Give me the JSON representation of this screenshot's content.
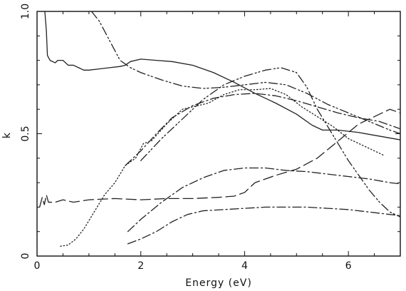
{
  "chart_data": {
    "type": "line",
    "title": "",
    "xlabel": "Energy (eV)",
    "ylabel": "k",
    "xlim": [
      0,
      7
    ],
    "ylim": [
      0,
      1
    ],
    "x_ticks": [
      0,
      2,
      4,
      6
    ],
    "x_tick_labels": [
      "0",
      "2",
      "4",
      "6"
    ],
    "y_ticks": [
      0,
      0.5,
      1
    ],
    "y_tick_labels": [
      "0",
      "0.5",
      "1.0"
    ],
    "grid": false,
    "legend": "none",
    "series": [
      {
        "style": "solid",
        "color": "#222222",
        "points": [
          [
            0.15,
            1.0
          ],
          [
            0.18,
            0.92
          ],
          [
            0.2,
            0.82
          ],
          [
            0.25,
            0.8
          ],
          [
            0.35,
            0.79
          ],
          [
            0.4,
            0.8
          ],
          [
            0.5,
            0.8
          ],
          [
            0.6,
            0.78
          ],
          [
            0.7,
            0.78
          ],
          [
            0.8,
            0.77
          ],
          [
            0.9,
            0.76
          ],
          [
            1.0,
            0.76
          ],
          [
            1.2,
            0.765
          ],
          [
            1.4,
            0.77
          ],
          [
            1.6,
            0.775
          ],
          [
            1.7,
            0.78
          ],
          [
            1.8,
            0.795
          ],
          [
            2.0,
            0.805
          ],
          [
            2.3,
            0.8
          ],
          [
            2.6,
            0.795
          ],
          [
            3.0,
            0.78
          ],
          [
            3.4,
            0.75
          ],
          [
            3.8,
            0.71
          ],
          [
            4.2,
            0.665
          ],
          [
            4.6,
            0.625
          ],
          [
            5.0,
            0.58
          ],
          [
            5.3,
            0.535
          ],
          [
            5.5,
            0.515
          ],
          [
            5.8,
            0.515
          ],
          [
            6.2,
            0.505
          ],
          [
            6.6,
            0.49
          ],
          [
            7.0,
            0.475
          ]
        ]
      },
      {
        "style": "dash-dot-dot",
        "color": "#222222",
        "points": [
          [
            1.05,
            1.0
          ],
          [
            1.2,
            0.96
          ],
          [
            1.4,
            0.88
          ],
          [
            1.6,
            0.8
          ],
          [
            1.8,
            0.77
          ],
          [
            2.0,
            0.75
          ],
          [
            2.4,
            0.72
          ],
          [
            2.8,
            0.695
          ],
          [
            3.2,
            0.685
          ],
          [
            3.6,
            0.69
          ],
          [
            4.0,
            0.7
          ],
          [
            4.4,
            0.71
          ],
          [
            4.8,
            0.7
          ],
          [
            5.2,
            0.665
          ],
          [
            5.6,
            0.62
          ],
          [
            6.0,
            0.585
          ],
          [
            6.4,
            0.55
          ],
          [
            6.8,
            0.515
          ],
          [
            7.0,
            0.5
          ]
        ]
      },
      {
        "style": "dotted",
        "color": "#222222",
        "points": [
          [
            0.45,
            0.04
          ],
          [
            0.6,
            0.045
          ],
          [
            0.75,
            0.07
          ],
          [
            0.9,
            0.11
          ],
          [
            1.1,
            0.18
          ],
          [
            1.3,
            0.25
          ],
          [
            1.5,
            0.3
          ],
          [
            1.7,
            0.37
          ],
          [
            1.9,
            0.4
          ],
          [
            2.05,
            0.46
          ],
          [
            2.2,
            0.47
          ],
          [
            2.5,
            0.54
          ],
          [
            2.8,
            0.6
          ],
          [
            3.0,
            0.61
          ],
          [
            3.3,
            0.625
          ],
          [
            3.6,
            0.66
          ],
          [
            3.9,
            0.68
          ],
          [
            4.2,
            0.68
          ],
          [
            4.5,
            0.685
          ],
          [
            4.8,
            0.66
          ],
          [
            5.1,
            0.61
          ],
          [
            5.4,
            0.57
          ],
          [
            5.7,
            0.53
          ],
          [
            6.0,
            0.48
          ],
          [
            6.3,
            0.45
          ],
          [
            6.6,
            0.42
          ],
          [
            6.7,
            0.41
          ]
        ]
      },
      {
        "style": "dash-dot",
        "color": "#222222",
        "points": [
          [
            1.7,
            0.37
          ],
          [
            2.0,
            0.43
          ],
          [
            2.3,
            0.5
          ],
          [
            2.6,
            0.565
          ],
          [
            3.0,
            0.615
          ],
          [
            3.4,
            0.645
          ],
          [
            3.8,
            0.66
          ],
          [
            4.2,
            0.665
          ],
          [
            4.6,
            0.655
          ],
          [
            5.0,
            0.635
          ],
          [
            5.4,
            0.61
          ],
          [
            5.8,
            0.585
          ],
          [
            6.2,
            0.565
          ],
          [
            6.6,
            0.55
          ],
          [
            7.0,
            0.52
          ]
        ]
      },
      {
        "style": "dash-dot-dot",
        "color": "#222222",
        "points": [
          [
            2.0,
            0.39
          ],
          [
            2.4,
            0.48
          ],
          [
            2.8,
            0.56
          ],
          [
            3.2,
            0.64
          ],
          [
            3.6,
            0.7
          ],
          [
            4.0,
            0.735
          ],
          [
            4.4,
            0.76
          ],
          [
            4.7,
            0.77
          ],
          [
            5.0,
            0.75
          ],
          [
            5.2,
            0.69
          ],
          [
            5.4,
            0.6
          ],
          [
            5.6,
            0.53
          ],
          [
            5.8,
            0.46
          ],
          [
            6.0,
            0.39
          ],
          [
            6.2,
            0.33
          ],
          [
            6.4,
            0.27
          ],
          [
            6.6,
            0.22
          ],
          [
            6.8,
            0.18
          ],
          [
            7.0,
            0.16
          ]
        ]
      },
      {
        "style": "long-dash",
        "color": "#222222",
        "points": [
          [
            0.05,
            0.2
          ],
          [
            0.1,
            0.24
          ],
          [
            0.14,
            0.21
          ],
          [
            0.18,
            0.25
          ],
          [
            0.22,
            0.22
          ],
          [
            0.35,
            0.22
          ],
          [
            0.5,
            0.23
          ],
          [
            0.7,
            0.22
          ],
          [
            1.0,
            0.23
          ],
          [
            1.5,
            0.235
          ],
          [
            2.0,
            0.23
          ],
          [
            2.5,
            0.235
          ],
          [
            3.0,
            0.235
          ],
          [
            3.5,
            0.24
          ],
          [
            3.8,
            0.245
          ],
          [
            4.0,
            0.26
          ],
          [
            4.2,
            0.3
          ],
          [
            4.6,
            0.33
          ],
          [
            5.0,
            0.355
          ],
          [
            5.4,
            0.4
          ],
          [
            5.8,
            0.47
          ],
          [
            6.2,
            0.54
          ],
          [
            6.6,
            0.58
          ],
          [
            6.8,
            0.6
          ],
          [
            7.0,
            0.585
          ]
        ]
      },
      {
        "style": "dash-dot",
        "color": "#222222",
        "points": [
          [
            1.75,
            0.1
          ],
          [
            2.0,
            0.15
          ],
          [
            2.4,
            0.22
          ],
          [
            2.8,
            0.28
          ],
          [
            3.2,
            0.32
          ],
          [
            3.6,
            0.35
          ],
          [
            4.0,
            0.36
          ],
          [
            4.4,
            0.36
          ],
          [
            4.8,
            0.35
          ],
          [
            5.2,
            0.345
          ],
          [
            5.6,
            0.335
          ],
          [
            6.0,
            0.325
          ],
          [
            6.4,
            0.315
          ],
          [
            6.8,
            0.3
          ],
          [
            7.0,
            0.295
          ]
        ]
      },
      {
        "style": "dash-dot",
        "color": "#222222",
        "points": [
          [
            1.75,
            0.05
          ],
          [
            2.0,
            0.07
          ],
          [
            2.3,
            0.1
          ],
          [
            2.6,
            0.14
          ],
          [
            2.9,
            0.17
          ],
          [
            3.2,
            0.185
          ],
          [
            3.6,
            0.19
          ],
          [
            4.0,
            0.195
          ],
          [
            4.4,
            0.2
          ],
          [
            4.8,
            0.2
          ],
          [
            5.2,
            0.2
          ],
          [
            5.6,
            0.195
          ],
          [
            6.0,
            0.19
          ],
          [
            6.4,
            0.18
          ],
          [
            6.8,
            0.17
          ],
          [
            7.0,
            0.165
          ]
        ]
      }
    ]
  }
}
